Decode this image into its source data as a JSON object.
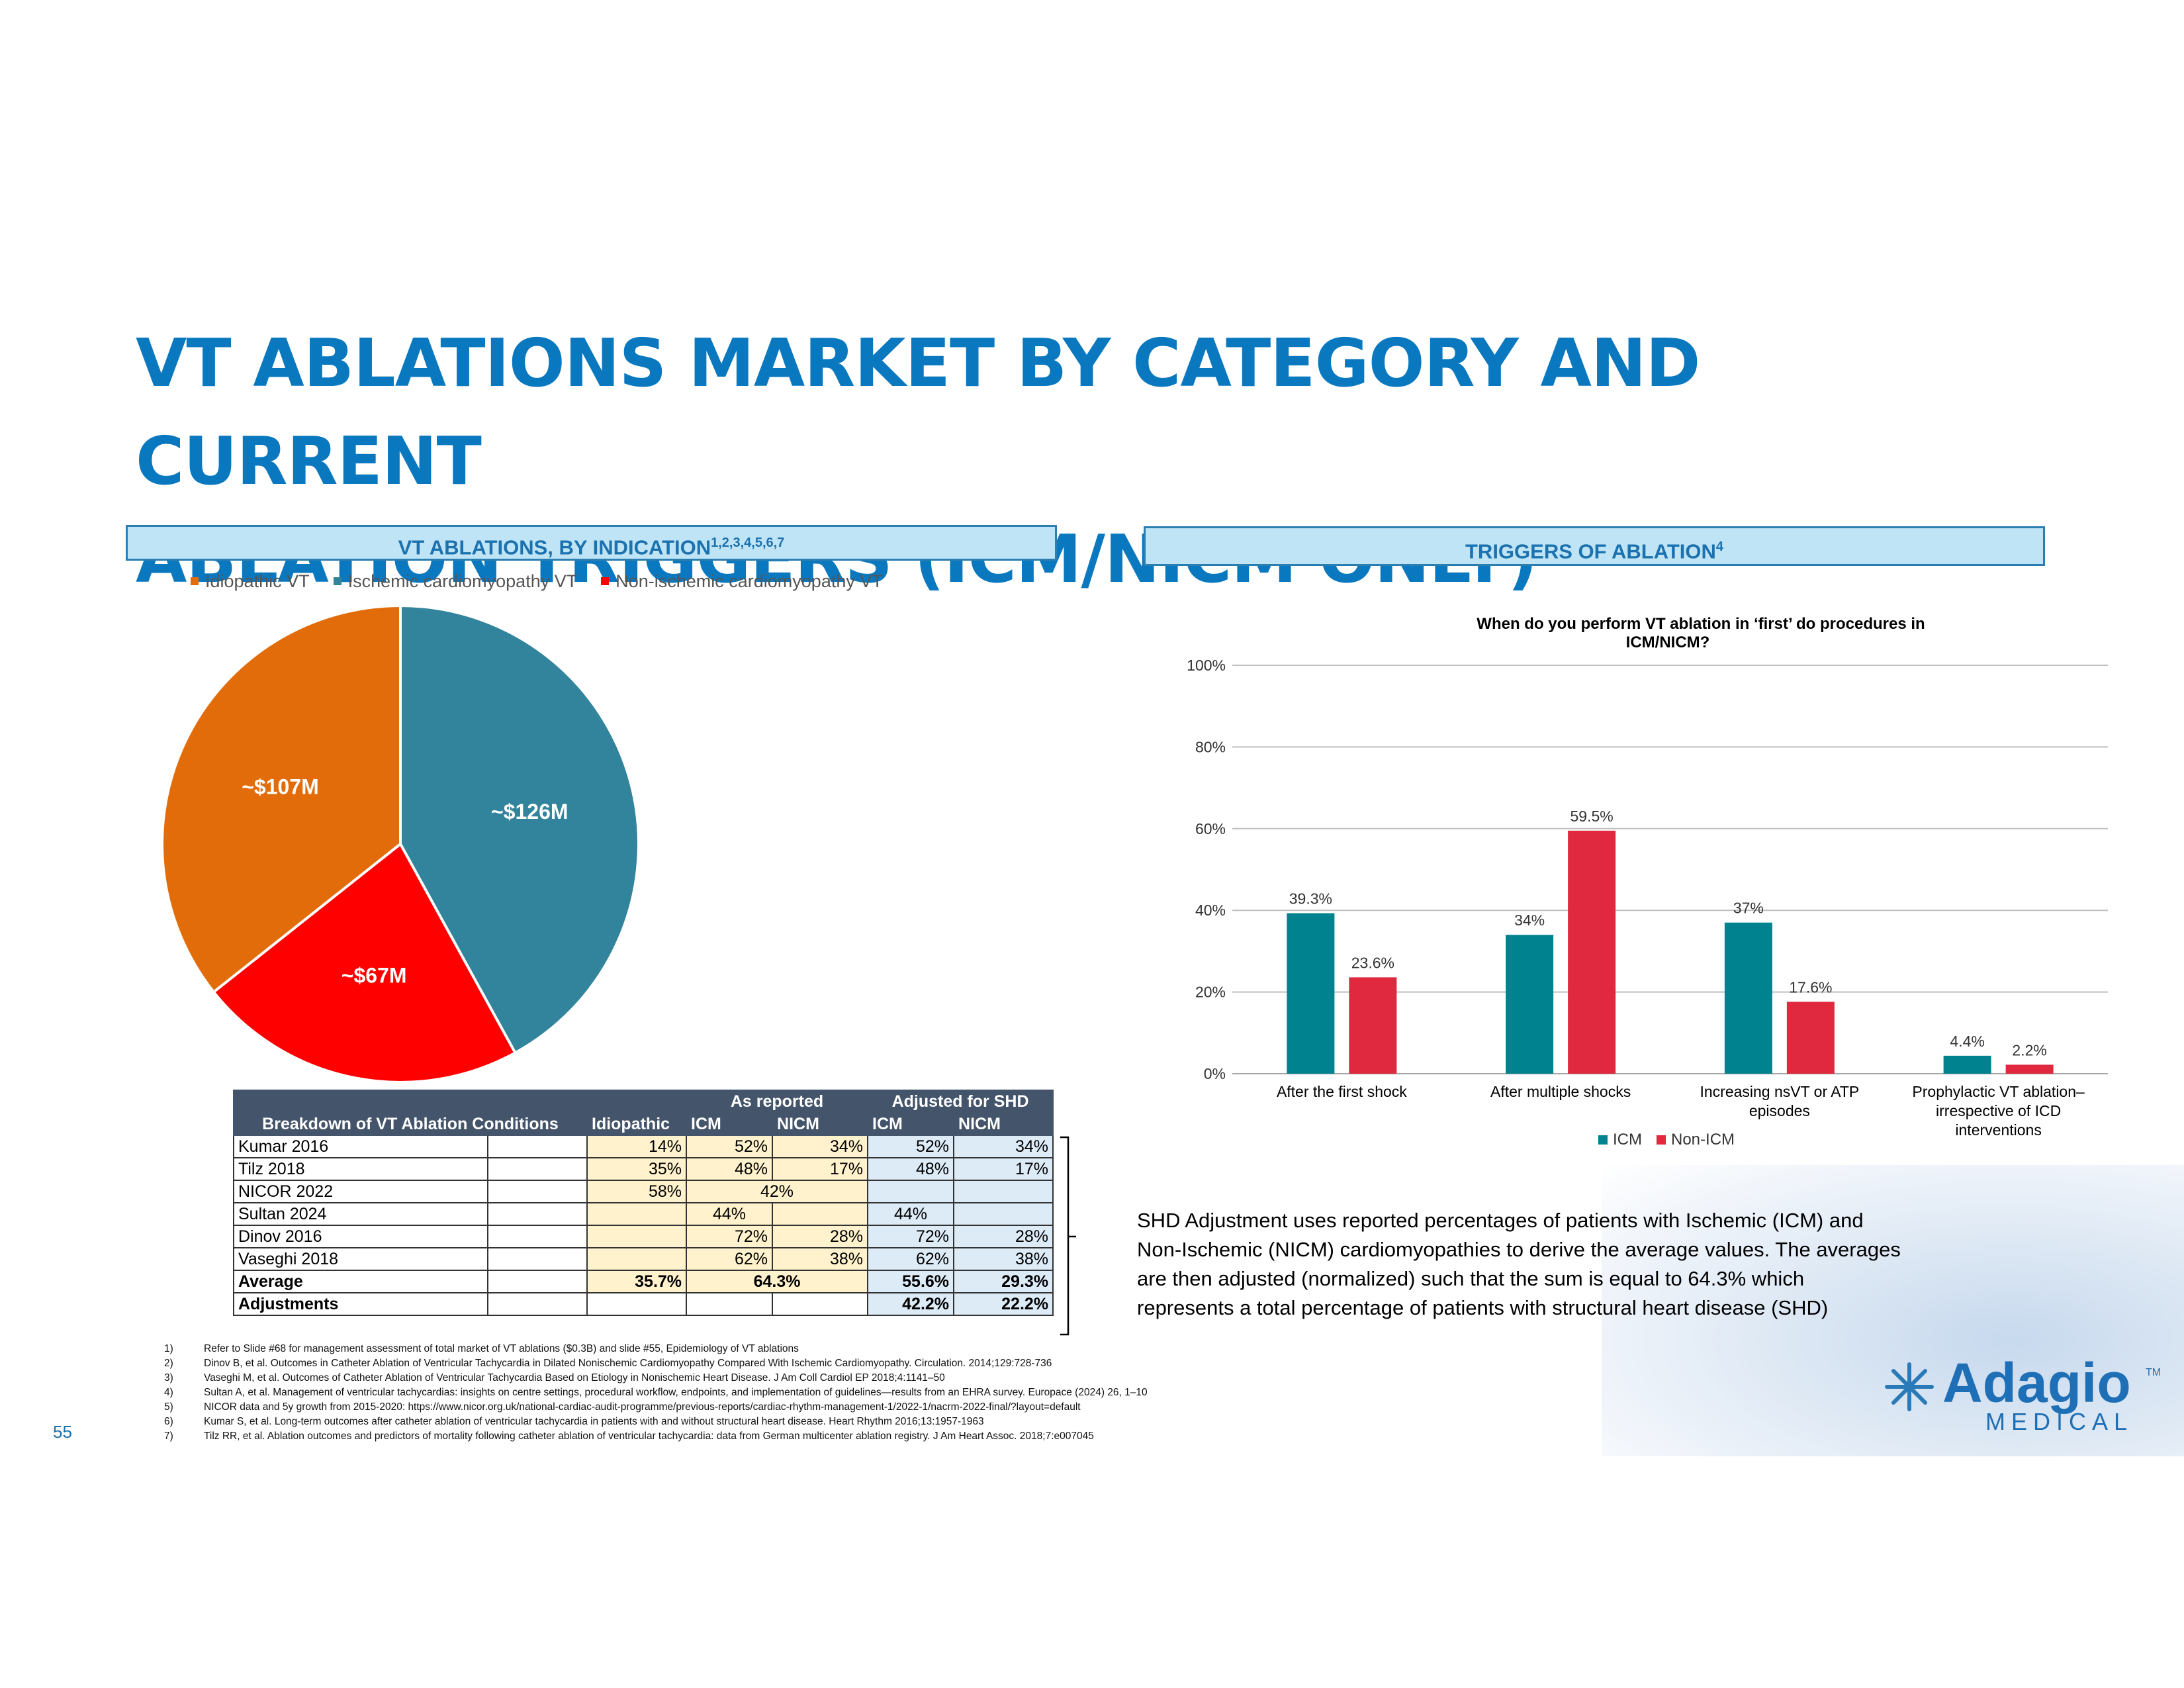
{
  "slide": {
    "title_line1": "VT ABLATIONS MARKET BY CATEGORY AND CURRENT",
    "title_line2": "ABLATION TRIGGERS (ICM/NICM ONLY)",
    "page_number": "55",
    "logo_main": "Adagio",
    "logo_tm": "TM",
    "logo_sub": "MEDICAL"
  },
  "left_header": {
    "text": "VT ABLATIONS, BY INDICATION",
    "sup": "1,2,3,4,5,6,7"
  },
  "right_header": {
    "text": "TRIGGERS OF ABLATION",
    "sup": "4"
  },
  "chart_data": [
    {
      "type": "pie",
      "legend": [
        "Idiopathic VT",
        "Ischemic cardiomyopathy VT",
        "Non-ischemic cardiomyopathy VT"
      ],
      "values": [
        107,
        126,
        67
      ],
      "labels": [
        "~$107M",
        "~$126M",
        "~$67M"
      ],
      "colors": [
        "#e36c0a",
        "#31849b",
        "#ff0000"
      ],
      "unit": "$M"
    },
    {
      "type": "bar",
      "title": "When do you perform VT ablation in ‘first’ do procedures in",
      "title_line2": "ICM/NICM?",
      "categories": [
        [
          "After the first shock"
        ],
        [
          "After multiple shocks"
        ],
        [
          "Increasing nsVT or ATP",
          "episodes"
        ],
        [
          "Prophylactic VT ablation–",
          "irrespective of ICD",
          "interventions"
        ]
      ],
      "series": [
        {
          "name": "ICM",
          "color": "#00838f",
          "values": [
            39.3,
            34,
            37,
            4.4
          ],
          "labels": [
            "39.3%",
            "34%",
            "37%",
            "4.4%"
          ]
        },
        {
          "name": "Non-ICM",
          "color": "#e0283e",
          "values": [
            23.6,
            59.5,
            17.6,
            2.2
          ],
          "labels": [
            "23.6%",
            "59.5%",
            "17.6%",
            "2.2%"
          ]
        }
      ],
      "ylim": [
        0,
        100
      ],
      "yticks": [
        "0%",
        "20%",
        "40%",
        "60%",
        "80%",
        "100%"
      ],
      "grid": true,
      "legend_position": "bottom"
    }
  ],
  "table": {
    "title": "Breakdown of VT Ablation Conditions",
    "group_as_reported": "As reported",
    "group_adjusted": "Adjusted for SHD",
    "columns": [
      "Idiopathic",
      "ICM",
      "NICM",
      "ICM",
      "NICM"
    ],
    "rows": [
      {
        "study": "Kumar 2016",
        "idio": "14%",
        "icm": "52%",
        "nicm": "34%",
        "adj_icm": "52%",
        "adj_nicm": "34%"
      },
      {
        "study": "Tilz 2018",
        "idio": "35%",
        "icm": "48%",
        "nicm": "17%",
        "adj_icm": "48%",
        "adj_nicm": "17%"
      },
      {
        "study": "NICOR 2022",
        "idio": "58%",
        "merged": "42%"
      },
      {
        "study": "Sultan 2024",
        "icm": "44%",
        "adj_icm": "44%"
      },
      {
        "study": "Dinov 2016",
        "icm": "72%",
        "nicm": "28%",
        "adj_icm": "72%",
        "adj_nicm": "28%"
      },
      {
        "study": "Vaseghi 2018",
        "icm": "62%",
        "nicm": "38%",
        "adj_icm": "62%",
        "adj_nicm": "38%"
      }
    ],
    "average": {
      "label": "Average",
      "idio": "35.7%",
      "merged": "64.3%",
      "adj_icm": "55.6%",
      "adj_nicm": "29.3%"
    },
    "adjustments": {
      "label": "Adjustments",
      "adj_icm": "42.2%",
      "adj_nicm": "22.2%"
    }
  },
  "note": [
    "SHD Adjustment uses reported percentages of patients with Ischemic (ICM) and",
    "Non-Ischemic (NICM) cardiomyopathies to derive the average values. The averages",
    "are then adjusted (normalized) such that the sum is equal to 64.3% which",
    "represents a total percentage of patients with structural heart disease (SHD)"
  ],
  "references": [
    {
      "n": "1)",
      "text": "Refer to Slide #68 for management assessment of total market of VT ablations ($0.3B) and slide #55, Epidemiology of VT ablations"
    },
    {
      "n": "2)",
      "text": "Dinov B, et al. Outcomes in Catheter Ablation of Ventricular Tachycardia in Dilated Nonischemic Cardiomyopathy Compared With Ischemic Cardiomyopathy. Circulation. 2014;129:728-736"
    },
    {
      "n": "3)",
      "text": "Vaseghi M, et al. Outcomes of Catheter Ablation of Ventricular Tachycardia Based on Etiology in Nonischemic Heart Disease. J Am Coll Cardiol EP 2018;4:1141–50"
    },
    {
      "n": "4)",
      "text": "Sultan A, et al. Management of ventricular tachycardias: insights on centre settings, procedural workflow, endpoints, and implementation of guidelines—results from an EHRA survey. Europace (2024) 26, 1–10"
    },
    {
      "n": "5)",
      "text": "NICOR data and 5y growth from 2015-2020: https://www.nicor.org.uk/national-cardiac-audit-programme/previous-reports/cardiac-rhythm-management-1/2022-1/nacrm-2022-final/?layout=default"
    },
    {
      "n": "6)",
      "text": "Kumar S, et al. Long-term outcomes after catheter ablation of ventricular tachycardia in patients with and without structural heart disease. Heart Rhythm 2016;13:1957-1963"
    },
    {
      "n": "7)",
      "text": "Tilz RR, et al. Ablation outcomes and predictors of mortality following catheter ablation of ventricular tachycardia: data from German multicenter ablation registry. J Am Heart Assoc. 2018;7:e007045"
    }
  ]
}
